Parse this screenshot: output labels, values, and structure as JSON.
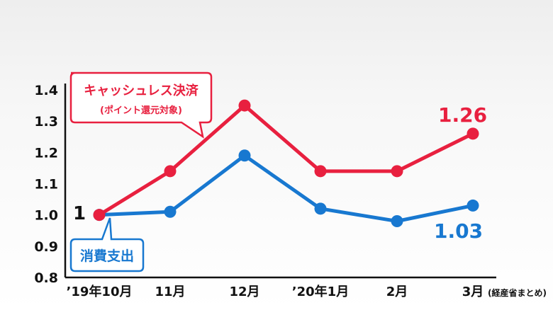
{
  "chart_data": {
    "type": "line",
    "categories": [
      "’19年10月",
      "11月",
      "12月",
      "’20年1月",
      "2月",
      "3月"
    ],
    "series": [
      {
        "name": "キャッシュレス決済",
        "subname": "(ポイント還元対象)",
        "color": "#e8203f",
        "values": [
          1.0,
          1.14,
          1.35,
          1.14,
          1.14,
          1.26
        ],
        "end_label": "1.26"
      },
      {
        "name": "消費支出",
        "color": "#1878d0",
        "values": [
          1.0,
          1.01,
          1.19,
          1.02,
          0.98,
          1.03
        ],
        "end_label": "1.03"
      }
    ],
    "start_label": "1",
    "ylim": [
      0.8,
      1.4
    ],
    "yticks": [
      "1.4",
      "1.3",
      "1.2",
      "1.1",
      "1.0",
      "0.9",
      "0.8"
    ],
    "ytick_values": [
      1.4,
      1.3,
      1.2,
      1.1,
      1.0,
      0.9,
      0.8
    ],
    "source_note": "(経産省まとめ)",
    "grid": false
  }
}
